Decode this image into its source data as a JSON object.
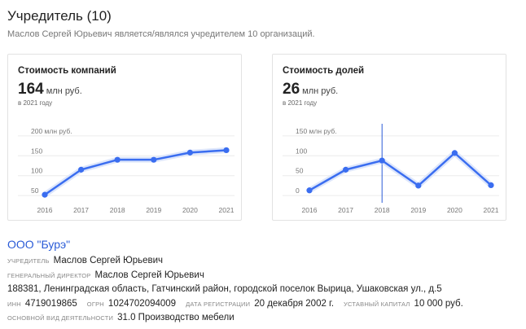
{
  "header": {
    "title": "Учредитель (10)",
    "subtitle": "Маслов Сергей Юрьевич является/являлся учредителем 10 организаций."
  },
  "cards": [
    {
      "title": "Стоимость компаний",
      "value": "164",
      "unit": "млн руб.",
      "year_note": "в 2021 году",
      "axis_unit": "млн руб."
    },
    {
      "title": "Стоимость долей",
      "value": "26",
      "unit": "млн руб.",
      "year_note": "в 2021 году",
      "axis_unit": "млн руб."
    }
  ],
  "chart_data": [
    {
      "type": "line",
      "title": "Стоимость компаний",
      "x": [
        "2016",
        "2017",
        "2018",
        "2019",
        "2020",
        "2021"
      ],
      "series": [
        {
          "values": [
            52,
            115,
            140,
            140,
            158,
            164
          ]
        }
      ],
      "yticks": [
        50,
        100,
        150,
        200
      ],
      "ytick_labels": [
        "50",
        "100",
        "150",
        "200 млн руб."
      ],
      "ylim": [
        40,
        210
      ],
      "grid": true,
      "color": "#3a6df0"
    },
    {
      "type": "line",
      "title": "Стоимость долей",
      "x": [
        "2016",
        "2017",
        "2018",
        "2019",
        "2020",
        "2021"
      ],
      "series": [
        {
          "values": [
            13,
            65,
            88,
            25,
            107,
            26
          ]
        }
      ],
      "yticks": [
        0,
        50,
        100,
        150
      ],
      "ytick_labels": [
        "0",
        "50",
        "100",
        "150 млн руб."
      ],
      "ylim": [
        -10,
        160
      ],
      "grid": true,
      "highlight_x": "2018",
      "color": "#3a6df0"
    }
  ],
  "company": {
    "name": "ООО \"Бурэ\"",
    "founder_label": "Учредитель",
    "founder": "Маслов Сергей Юрьевич",
    "director_label": "Генеральный директор",
    "director": "Маслов Сергей Юрьевич",
    "address": "188381, Ленинградская область, Гатчинский район, городской поселок Вырица, Ушаковская ул., д.5",
    "inn_label": "ИНН",
    "inn": "4719019865",
    "ogrn_label": "ОГРН",
    "ogrn": "1024702094009",
    "reg_date_label": "Дата регистрации",
    "reg_date": "20 декабря 2002 г.",
    "capital_label": "Уставный капитал",
    "capital": "10 000 руб.",
    "activity_label": "Основной вид деятельности",
    "activity": "31.0 Производство мебели"
  }
}
